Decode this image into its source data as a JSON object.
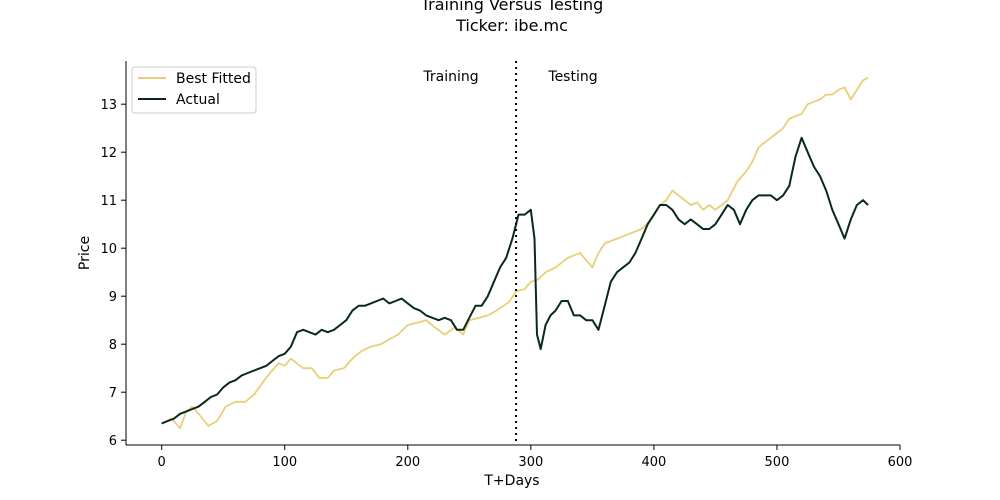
{
  "chart_data": {
    "type": "line",
    "title": "Training Versus Testing",
    "subtitle": "Ticker: ibe.mc",
    "xlabel": "T+Days",
    "ylabel": "Price",
    "xlim": [
      -29,
      600
    ],
    "ylim": [
      5.9,
      13.9
    ],
    "xticks": [
      0,
      100,
      200,
      300,
      400,
      500,
      600
    ],
    "yticks": [
      6,
      7,
      8,
      9,
      10,
      11,
      12,
      13
    ],
    "split_x": 288,
    "annotations": {
      "training": "Training",
      "testing": "Testing"
    },
    "legend_position": "top-left",
    "grid": false,
    "series": [
      {
        "name": "Best Fitted",
        "color": "#e8cf78",
        "points": [
          [
            0,
            6.35
          ],
          [
            8,
            6.45
          ],
          [
            15,
            6.25
          ],
          [
            20,
            6.6
          ],
          [
            25,
            6.7
          ],
          [
            30,
            6.55
          ],
          [
            38,
            6.3
          ],
          [
            45,
            6.4
          ],
          [
            52,
            6.7
          ],
          [
            60,
            6.8
          ],
          [
            68,
            6.8
          ],
          [
            75,
            6.95
          ],
          [
            82,
            7.2
          ],
          [
            88,
            7.4
          ],
          [
            95,
            7.6
          ],
          [
            100,
            7.55
          ],
          [
            105,
            7.7
          ],
          [
            110,
            7.6
          ],
          [
            115,
            7.5
          ],
          [
            122,
            7.5
          ],
          [
            128,
            7.3
          ],
          [
            135,
            7.3
          ],
          [
            140,
            7.45
          ],
          [
            148,
            7.5
          ],
          [
            155,
            7.7
          ],
          [
            162,
            7.85
          ],
          [
            170,
            7.95
          ],
          [
            178,
            8.0
          ],
          [
            185,
            8.1
          ],
          [
            192,
            8.2
          ],
          [
            200,
            8.4
          ],
          [
            208,
            8.45
          ],
          [
            215,
            8.5
          ],
          [
            222,
            8.35
          ],
          [
            230,
            8.2
          ],
          [
            238,
            8.35
          ],
          [
            245,
            8.2
          ],
          [
            250,
            8.5
          ],
          [
            258,
            8.55
          ],
          [
            265,
            8.6
          ],
          [
            272,
            8.7
          ],
          [
            278,
            8.8
          ],
          [
            283,
            8.9
          ],
          [
            288,
            9.1
          ],
          [
            295,
            9.15
          ],
          [
            300,
            9.3
          ],
          [
            306,
            9.35
          ],
          [
            312,
            9.5
          ],
          [
            320,
            9.6
          ],
          [
            330,
            9.8
          ],
          [
            340,
            9.9
          ],
          [
            350,
            9.6
          ],
          [
            355,
            9.9
          ],
          [
            360,
            10.1
          ],
          [
            370,
            10.2
          ],
          [
            380,
            10.3
          ],
          [
            390,
            10.4
          ],
          [
            398,
            10.6
          ],
          [
            405,
            10.9
          ],
          [
            410,
            11.0
          ],
          [
            415,
            11.2
          ],
          [
            420,
            11.1
          ],
          [
            425,
            11.0
          ],
          [
            430,
            10.9
          ],
          [
            435,
            10.95
          ],
          [
            440,
            10.8
          ],
          [
            445,
            10.9
          ],
          [
            450,
            10.8
          ],
          [
            455,
            10.9
          ],
          [
            460,
            11.0
          ],
          [
            468,
            11.4
          ],
          [
            475,
            11.6
          ],
          [
            480,
            11.8
          ],
          [
            485,
            12.1
          ],
          [
            490,
            12.2
          ],
          [
            495,
            12.3
          ],
          [
            500,
            12.4
          ],
          [
            505,
            12.5
          ],
          [
            510,
            12.7
          ],
          [
            515,
            12.75
          ],
          [
            520,
            12.8
          ],
          [
            525,
            13.0
          ],
          [
            530,
            13.05
          ],
          [
            535,
            13.1
          ],
          [
            540,
            13.2
          ],
          [
            545,
            13.2
          ],
          [
            550,
            13.3
          ],
          [
            555,
            13.35
          ],
          [
            560,
            13.1
          ],
          [
            565,
            13.3
          ],
          [
            570,
            13.5
          ],
          [
            574,
            13.55
          ]
        ]
      },
      {
        "name": "Actual",
        "color": "#082a1c",
        "points": [
          [
            0,
            6.35
          ],
          [
            5,
            6.4
          ],
          [
            10,
            6.45
          ],
          [
            15,
            6.55
          ],
          [
            20,
            6.6
          ],
          [
            25,
            6.65
          ],
          [
            30,
            6.7
          ],
          [
            35,
            6.8
          ],
          [
            40,
            6.9
          ],
          [
            45,
            6.95
          ],
          [
            50,
            7.1
          ],
          [
            55,
            7.2
          ],
          [
            60,
            7.25
          ],
          [
            65,
            7.35
          ],
          [
            70,
            7.4
          ],
          [
            75,
            7.45
          ],
          [
            80,
            7.5
          ],
          [
            85,
            7.55
          ],
          [
            90,
            7.65
          ],
          [
            95,
            7.75
          ],
          [
            100,
            7.8
          ],
          [
            105,
            7.95
          ],
          [
            110,
            8.25
          ],
          [
            115,
            8.3
          ],
          [
            120,
            8.25
          ],
          [
            125,
            8.2
          ],
          [
            130,
            8.3
          ],
          [
            135,
            8.25
          ],
          [
            140,
            8.3
          ],
          [
            145,
            8.4
          ],
          [
            150,
            8.5
          ],
          [
            155,
            8.7
          ],
          [
            160,
            8.8
          ],
          [
            165,
            8.8
          ],
          [
            170,
            8.85
          ],
          [
            175,
            8.9
          ],
          [
            180,
            8.95
          ],
          [
            185,
            8.85
          ],
          [
            190,
            8.9
          ],
          [
            195,
            8.95
          ],
          [
            200,
            8.85
          ],
          [
            205,
            8.75
          ],
          [
            210,
            8.7
          ],
          [
            215,
            8.6
          ],
          [
            220,
            8.55
          ],
          [
            225,
            8.5
          ],
          [
            230,
            8.55
          ],
          [
            235,
            8.5
          ],
          [
            240,
            8.3
          ],
          [
            245,
            8.3
          ],
          [
            250,
            8.55
          ],
          [
            255,
            8.8
          ],
          [
            260,
            8.8
          ],
          [
            265,
            9.0
          ],
          [
            270,
            9.3
          ],
          [
            275,
            9.6
          ],
          [
            280,
            9.8
          ],
          [
            285,
            10.2
          ],
          [
            290,
            10.7
          ],
          [
            295,
            10.7
          ],
          [
            300,
            10.8
          ],
          [
            303,
            10.2
          ],
          [
            305,
            8.2
          ],
          [
            308,
            7.9
          ],
          [
            312,
            8.4
          ],
          [
            316,
            8.6
          ],
          [
            320,
            8.7
          ],
          [
            325,
            8.9
          ],
          [
            330,
            8.9
          ],
          [
            335,
            8.6
          ],
          [
            340,
            8.6
          ],
          [
            345,
            8.5
          ],
          [
            350,
            8.5
          ],
          [
            355,
            8.3
          ],
          [
            360,
            8.8
          ],
          [
            365,
            9.3
          ],
          [
            370,
            9.5
          ],
          [
            375,
            9.6
          ],
          [
            380,
            9.7
          ],
          [
            385,
            9.9
          ],
          [
            390,
            10.2
          ],
          [
            395,
            10.5
          ],
          [
            400,
            10.7
          ],
          [
            405,
            10.9
          ],
          [
            410,
            10.9
          ],
          [
            415,
            10.8
          ],
          [
            420,
            10.6
          ],
          [
            425,
            10.5
          ],
          [
            430,
            10.6
          ],
          [
            435,
            10.5
          ],
          [
            440,
            10.4
          ],
          [
            445,
            10.4
          ],
          [
            450,
            10.5
          ],
          [
            455,
            10.7
          ],
          [
            460,
            10.9
          ],
          [
            465,
            10.8
          ],
          [
            470,
            10.5
          ],
          [
            475,
            10.8
          ],
          [
            480,
            11.0
          ],
          [
            485,
            11.1
          ],
          [
            490,
            11.1
          ],
          [
            495,
            11.1
          ],
          [
            500,
            11.0
          ],
          [
            505,
            11.1
          ],
          [
            510,
            11.3
          ],
          [
            515,
            11.9
          ],
          [
            520,
            12.3
          ],
          [
            525,
            12.0
          ],
          [
            530,
            11.7
          ],
          [
            535,
            11.5
          ],
          [
            540,
            11.2
          ],
          [
            545,
            10.8
          ],
          [
            550,
            10.5
          ],
          [
            555,
            10.2
          ],
          [
            560,
            10.6
          ],
          [
            565,
            10.9
          ],
          [
            570,
            11.0
          ],
          [
            574,
            10.9
          ]
        ]
      }
    ]
  }
}
